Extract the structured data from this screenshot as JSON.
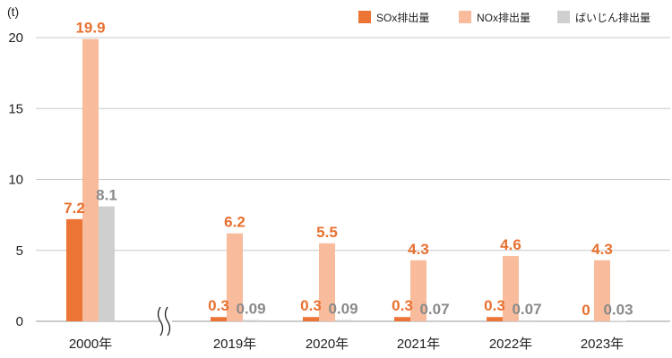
{
  "chart_data": {
    "type": "bar",
    "unit_label": "(t)",
    "categories": [
      "2000年",
      "2019年",
      "2020年",
      "2021年",
      "2022年",
      "2023年"
    ],
    "series": [
      {
        "name": "SOx排出量",
        "color": "#EC7535",
        "values": [
          7.2,
          0.3,
          0.3,
          0.3,
          0.3,
          0
        ],
        "labels": [
          "7.2",
          "0.3",
          "0.3",
          "0.3",
          "0.3",
          "0"
        ],
        "label_color": "#E8702F"
      },
      {
        "name": "NOx排出量",
        "color": "#F8BB9B",
        "values": [
          19.9,
          6.2,
          5.5,
          4.3,
          4.6,
          4.3
        ],
        "labels": [
          "19.9",
          "6.2",
          "5.5",
          "4.3",
          "4.6",
          "4.3"
        ],
        "label_color": "#E8702F"
      },
      {
        "name": "ばいじん排出量",
        "color": "#CFCFCF",
        "values": [
          8.1,
          0.09,
          0.09,
          0.07,
          0.07,
          0.03
        ],
        "labels": [
          "8.1",
          "0.09",
          "0.09",
          "0.07",
          "0.07",
          "0.03"
        ],
        "label_color": "#8A8A8A"
      }
    ],
    "ylim": [
      0,
      20
    ],
    "yticks": [
      0,
      5,
      10,
      15,
      20
    ],
    "grid": true,
    "axis_break": "between 2000年 and 2019年",
    "legend_position": "top-right"
  }
}
